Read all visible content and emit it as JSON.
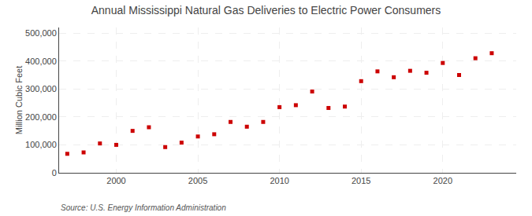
{
  "chart_data": {
    "type": "scatter",
    "title": "Annual Mississippi Natural Gas Deliveries to Electric Power Consumers",
    "ylabel": "Million Cubic Feet",
    "annotations": [
      "Source: U.S. Energy Information Administration"
    ],
    "x": [
      1997,
      1998,
      1999,
      2000,
      2001,
      2002,
      2003,
      2004,
      2005,
      2006,
      2007,
      2008,
      2009,
      2010,
      2011,
      2012,
      2013,
      2014,
      2015,
      2016,
      2017,
      2018,
      2019,
      2020,
      2021,
      2022,
      2023
    ],
    "values": [
      68000,
      73000,
      105000,
      100000,
      150000,
      163000,
      92000,
      108000,
      130000,
      138000,
      182000,
      165000,
      182000,
      235000,
      242000,
      291000,
      232000,
      237000,
      328000,
      363000,
      342000,
      365000,
      358000,
      393000,
      350000,
      410000,
      428000
    ],
    "color": "#cc0000",
    "marker": "square",
    "xlim": [
      1996.5,
      2024.5
    ],
    "xticks": [
      2000,
      2005,
      2010,
      2015,
      2020
    ],
    "ylim": [
      0,
      520000
    ],
    "yticks": [
      0,
      {
        "value": 100000,
        "label": "100,000"
      },
      {
        "value": 200000,
        "label": "200,000"
      },
      {
        "value": 300000,
        "label": "300,000"
      },
      {
        "value": 400000,
        "label": "400,000"
      },
      {
        "value": 500000,
        "label": "500,000"
      }
    ],
    "grid": true
  }
}
